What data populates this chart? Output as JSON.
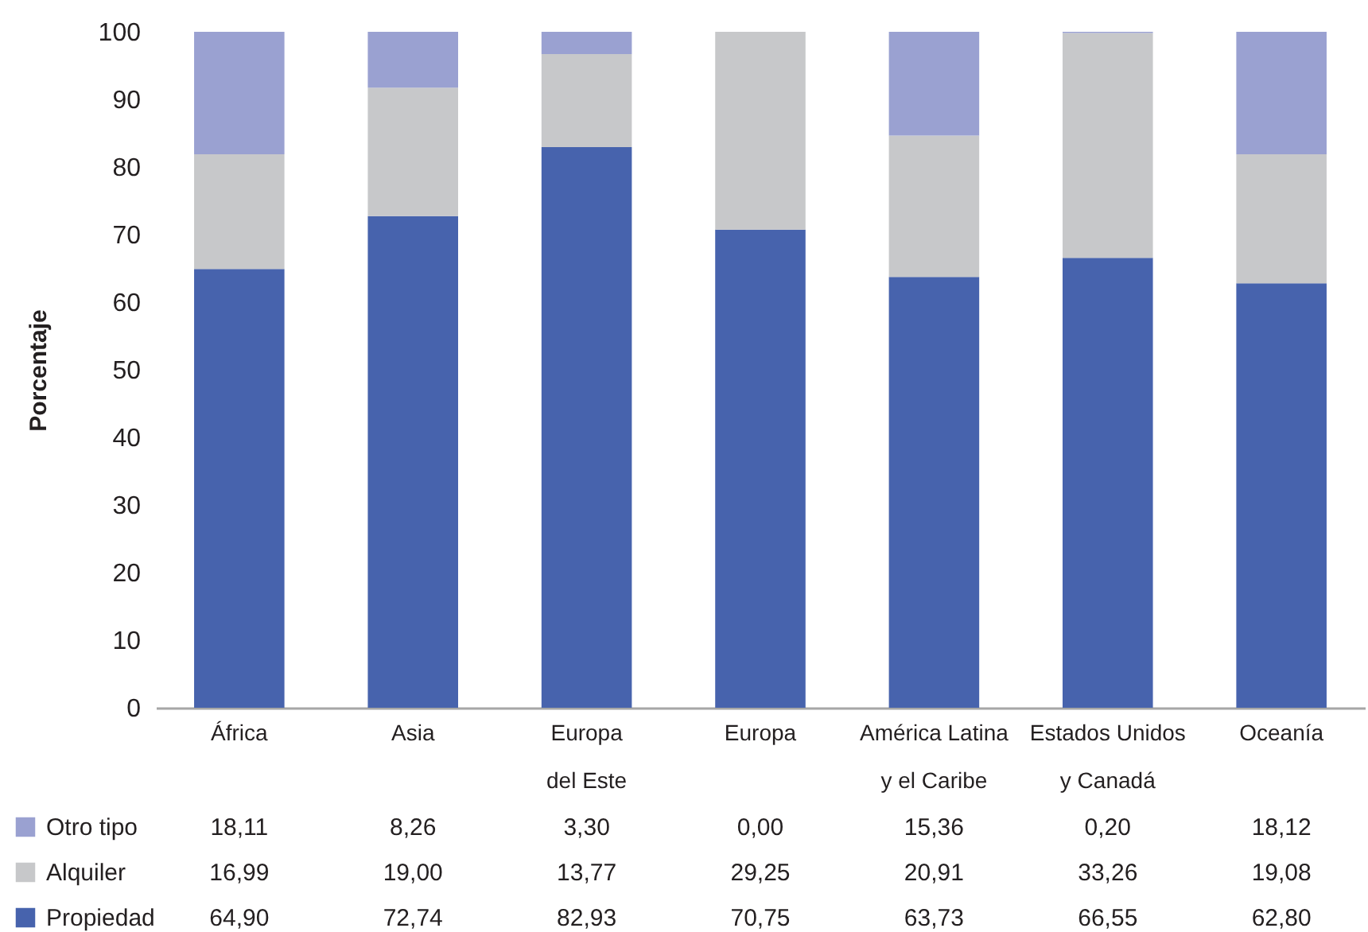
{
  "chart_data": {
    "type": "bar",
    "stacked": true,
    "ylabel": "Porcentaje",
    "categories": [
      "África",
      "Asia",
      "Europa\ndel Este",
      "Europa",
      "América Latina\ny el Caribe",
      "Estados Unidos\ny Canadá",
      "Oceanía"
    ],
    "series": [
      {
        "name": "Propiedad",
        "color": "#4763ad",
        "values": [
          64.9,
          72.74,
          82.93,
          70.75,
          63.73,
          66.55,
          62.8
        ],
        "value_labels": [
          "64,90",
          "72,74",
          "82,93",
          "70,75",
          "63,73",
          "66,55",
          "62,80"
        ]
      },
      {
        "name": "Alquiler",
        "color": "#c7c8ca",
        "values": [
          16.99,
          19.0,
          13.77,
          29.25,
          20.91,
          33.26,
          19.08
        ],
        "value_labels": [
          "16,99",
          "19,00",
          "13,77",
          "29,25",
          "20,91",
          "33,26",
          "19,08"
        ]
      },
      {
        "name": "Otro tipo",
        "color": "#9aa1d1",
        "values": [
          18.11,
          8.26,
          3.3,
          0.0,
          15.36,
          0.2,
          18.12
        ],
        "value_labels": [
          "18,11",
          "8,26",
          "3,30",
          "0,00",
          "15,36",
          "0,20",
          "18,12"
        ]
      }
    ],
    "ylim": [
      0,
      100
    ],
    "yticks": [
      0,
      10,
      20,
      30,
      40,
      50,
      60,
      70,
      80,
      90,
      100
    ],
    "legend": "bottom"
  }
}
